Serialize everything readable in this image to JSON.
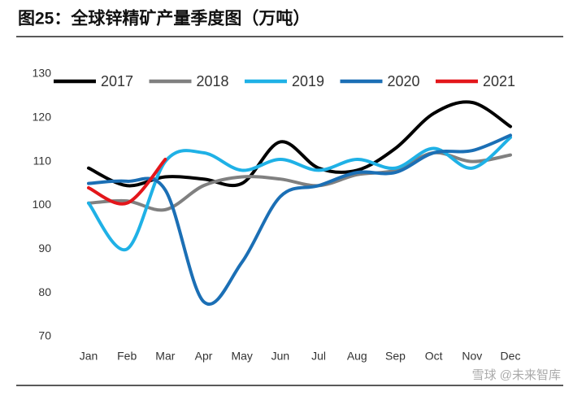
{
  "chart_data": {
    "type": "line",
    "title": "图25：全球锌精矿产量季度图（万吨）",
    "categories": [
      "Jan",
      "Feb",
      "Mar",
      "Apr",
      "May",
      "Jun",
      "Jul",
      "Aug",
      "Sep",
      "Oct",
      "Nov",
      "Dec"
    ],
    "series": [
      {
        "name": "2017",
        "color": "#000000",
        "values": [
          108.5,
          104.5,
          106.5,
          106,
          105,
          114.5,
          108.5,
          108,
          113,
          121,
          123.5,
          118
        ]
      },
      {
        "name": "2018",
        "color": "#808080",
        "values": [
          100.5,
          101,
          99,
          104.5,
          106.5,
          106,
          104.5,
          107,
          108,
          112,
          110,
          111.5
        ]
      },
      {
        "name": "2019",
        "color": "#1fb1e6",
        "values": [
          100.5,
          90,
          110,
          112,
          108,
          110.5,
          108,
          110.5,
          108.5,
          113,
          108.5,
          115.5
        ]
      },
      {
        "name": "2020",
        "color": "#1b6fb5",
        "values": [
          105,
          105.5,
          103.5,
          78,
          87,
          102,
          104.5,
          107.5,
          107.5,
          112,
          112.5,
          116
        ]
      },
      {
        "name": "2021",
        "color": "#e3161b",
        "values": [
          104,
          100.5,
          110.5,
          null,
          null,
          null,
          null,
          null,
          null,
          null,
          null,
          null
        ]
      }
    ],
    "ylim": [
      70,
      130
    ],
    "yticks": [
      70,
      80,
      90,
      100,
      110,
      120,
      130
    ],
    "grid": false,
    "legend": "top",
    "watermark": "雪球 @未来智库"
  }
}
